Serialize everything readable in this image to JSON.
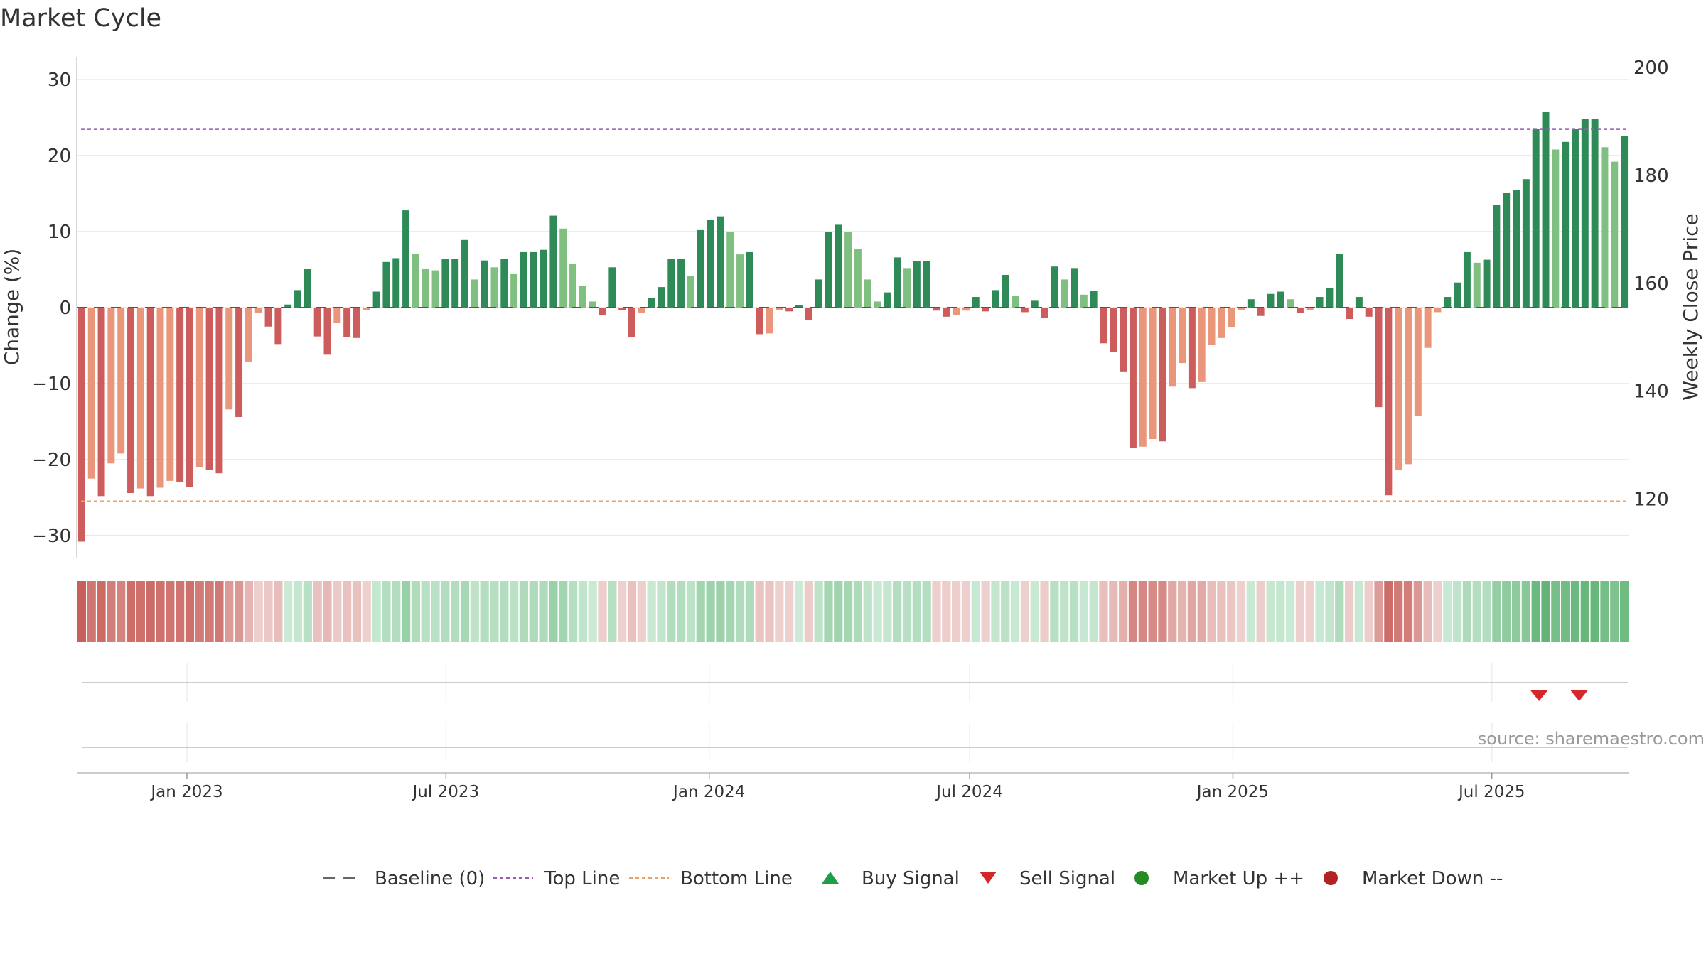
{
  "chart_data": {
    "type": "bar",
    "title": "Market Cycle",
    "ylabel": "Change (%)",
    "y2label": "Weekly Close Price",
    "ylim": [
      -33,
      33
    ],
    "y2lim": [
      109,
      202
    ],
    "yticks": [
      30,
      20,
      10,
      0,
      -10,
      -20,
      -30
    ],
    "ytick_labels": [
      "30",
      "20",
      "10",
      "0",
      "−10",
      "−20",
      "−30"
    ],
    "y2ticks": [
      200,
      180,
      160,
      140,
      120
    ],
    "top_line": 23.5,
    "bottom_line": -25.5,
    "x_start": "2022-10-16",
    "x_end": "2025-10-05",
    "x_tick_dates": [
      "2023-01-01",
      "2023-07-01",
      "2024-01-01",
      "2024-07-01",
      "2025-01-01",
      "2025-07-01"
    ],
    "x_tick_labels": [
      "Jan 2023",
      "Jul 2023",
      "Jan 2024",
      "Jul 2024",
      "Jan 2025",
      "Jul 2025"
    ],
    "grid": true,
    "legend_position": "bottom",
    "source": "source: sharemaestro.com",
    "values": [
      -30.8,
      -22.5,
      -24.8,
      -20.5,
      -19.2,
      -24.4,
      -23.8,
      -24.8,
      -23.7,
      -22.8,
      -22.9,
      -23.6,
      -21.0,
      -21.4,
      -21.8,
      -13.4,
      -14.4,
      -7.1,
      -0.7,
      -2.5,
      -4.8,
      0.4,
      2.3,
      5.1,
      -3.8,
      -6.2,
      -2.0,
      -3.9,
      -4.0,
      -0.3,
      2.1,
      6.0,
      6.5,
      12.8,
      7.1,
      5.1,
      4.9,
      6.4,
      6.4,
      8.9,
      3.7,
      6.2,
      5.3,
      6.4,
      4.4,
      7.3,
      7.3,
      7.6,
      12.1,
      10.4,
      5.8,
      2.9,
      0.8,
      -1.0,
      5.3,
      -0.3,
      -3.9,
      -0.7,
      1.3,
      2.7,
      6.4,
      6.4,
      4.2,
      10.2,
      11.5,
      12.0,
      10.0,
      7.0,
      7.3,
      -3.5,
      -3.4,
      -0.3,
      -0.5,
      0.3,
      -1.6,
      3.7,
      10.0,
      10.9,
      10.0,
      7.7,
      3.7,
      0.8,
      2.0,
      6.6,
      5.2,
      6.1,
      6.1,
      -0.4,
      -1.2,
      -1.0,
      -0.4,
      1.4,
      -0.5,
      2.3,
      4.3,
      1.5,
      -0.6,
      0.9,
      -1.4,
      5.4,
      3.7,
      5.2,
      1.7,
      2.2,
      -4.7,
      -5.8,
      -8.4,
      -18.5,
      -18.3,
      -17.3,
      -17.6,
      -10.4,
      -7.3,
      -10.6,
      -9.8,
      -4.9,
      -4.0,
      -2.6,
      -0.3,
      1.1,
      -1.1,
      1.8,
      2.1,
      1.1,
      -0.7,
      -0.3,
      1.4,
      2.6,
      7.1,
      -1.5,
      1.4,
      -1.2,
      -13.1,
      -24.7,
      -21.4,
      -20.6,
      -14.3,
      -5.3,
      -0.6,
      1.4,
      3.3,
      7.3,
      5.9,
      6.3,
      13.5,
      15.1,
      15.5,
      16.9,
      23.5,
      25.8,
      20.8,
      21.8,
      23.5,
      24.8,
      24.8,
      21.1,
      19.2,
      22.6
    ],
    "sell_signal_dates": [
      "2025-08-03",
      "2025-08-31"
    ],
    "legend": [
      {
        "label": "Baseline (0)",
        "marker": "dash",
        "color": "#666666"
      },
      {
        "label": "Top Line",
        "marker": "dotted",
        "color": "#9b59b6"
      },
      {
        "label": "Bottom Line",
        "marker": "dotted",
        "color": "#f0a060"
      },
      {
        "label": "Buy Signal",
        "marker": "triangle-up",
        "color": "#1e9e4a"
      },
      {
        "label": "Sell Signal",
        "marker": "triangle-down",
        "color": "#d62728"
      },
      {
        "label": "Market Up ++",
        "marker": "circle",
        "color": "#228b22"
      },
      {
        "label": "Market Down --",
        "marker": "circle",
        "color": "#b22222"
      }
    ]
  },
  "colors": {
    "strong_up": "#2e8b57",
    "light_up": "#7fbf7f",
    "strong_down": "#cd5c5c",
    "light_down": "#e9967a",
    "top_line": "#9b59b6",
    "bottom_line": "#f0a060",
    "sell": "#d62728"
  }
}
